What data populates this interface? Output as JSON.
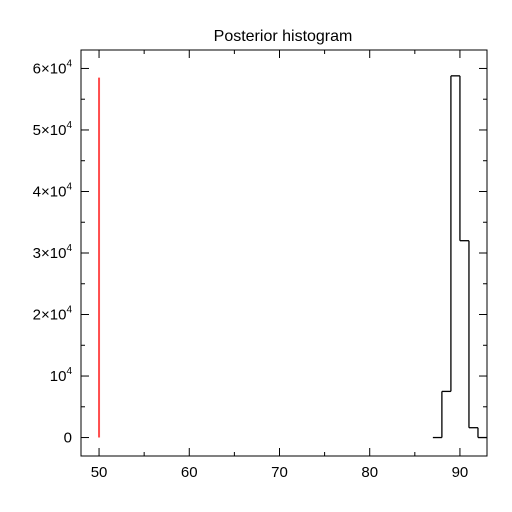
{
  "chart_data": {
    "type": "histogram",
    "title": "Posterior histogram",
    "xlabel": "",
    "ylabel": "",
    "xlim": [
      48,
      93
    ],
    "ylim": [
      -3000,
      63000
    ],
    "x_ticks": [
      {
        "value": 50,
        "label": "50"
      },
      {
        "value": 60,
        "label": "60"
      },
      {
        "value": 70,
        "label": "70"
      },
      {
        "value": 80,
        "label": "80"
      },
      {
        "value": 90,
        "label": "90"
      }
    ],
    "y_ticks": [
      {
        "value": 0,
        "base": "0",
        "exp": ""
      },
      {
        "value": 10000,
        "base": "10",
        "exp": "4"
      },
      {
        "value": 20000,
        "base": "2×10",
        "exp": "4"
      },
      {
        "value": 30000,
        "base": "3×10",
        "exp": "4"
      },
      {
        "value": 40000,
        "base": "4×10",
        "exp": "4"
      },
      {
        "value": 50000,
        "base": "5×10",
        "exp": "4"
      },
      {
        "value": 60000,
        "base": "6×10",
        "exp": "4"
      }
    ],
    "series": [
      {
        "color": "#000000",
        "style": "step",
        "bins": [
          {
            "x0": 87,
            "x1": 88,
            "count": 0
          },
          {
            "x0": 88,
            "x1": 89,
            "count": 7500
          },
          {
            "x0": 89,
            "x1": 90,
            "count": 58800
          },
          {
            "x0": 90,
            "x1": 91,
            "count": 32000
          },
          {
            "x0": 91,
            "x1": 92,
            "count": 1600
          },
          {
            "x0": 92,
            "x1": 93,
            "count": 0
          }
        ]
      }
    ],
    "reference_line": {
      "color": "#ff4d4d",
      "x": 50,
      "y_from": 0,
      "y_to": 58500
    },
    "grid": false,
    "legend": "none"
  }
}
